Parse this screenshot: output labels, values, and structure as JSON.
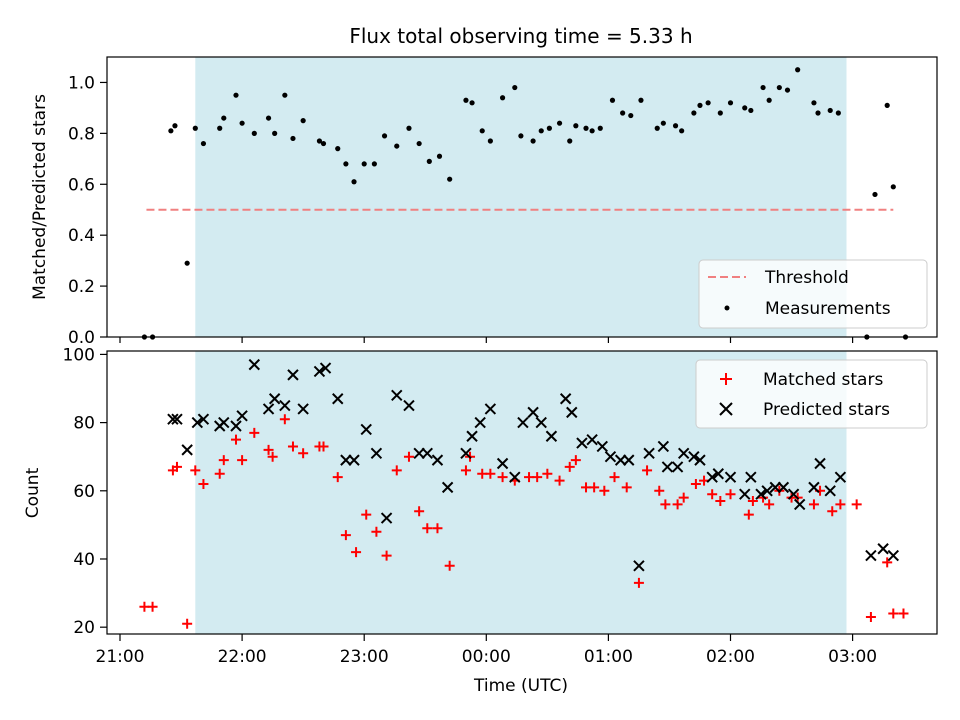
{
  "title": "Flux total observing time = 5.33 h",
  "xlabel": "Time (UTC)",
  "colors": {
    "shade": "#d3ebf1",
    "threshold": "#f08080",
    "matched": "#ff0000",
    "predicted": "#000000",
    "measurement": "#000000"
  },
  "chart_data": [
    {
      "type": "scatter",
      "ylabel": "Matched/Predicted stars",
      "xlim": [
        "20:55",
        "03:33"
      ],
      "ylim": [
        0,
        1.1
      ],
      "yticks": [
        "0.0",
        "0.2",
        "0.4",
        "0.6",
        "0.8",
        "1.0"
      ],
      "legend_position": "lower-right",
      "shaded_region": [
        "21:37",
        "02:57"
      ],
      "threshold": {
        "name": "Threshold",
        "value": 0.5,
        "x_range": [
          "21:13",
          "03:20"
        ]
      },
      "series": [
        {
          "name": "Measurements",
          "points": [
            [
              "21:12",
              0
            ],
            [
              "21:16",
              0
            ],
            [
              "21:25",
              0.81
            ],
            [
              "21:27",
              0.83
            ],
            [
              "21:33",
              0.29
            ],
            [
              "21:37",
              0.82
            ],
            [
              "21:41",
              0.76
            ],
            [
              "21:49",
              0.82
            ],
            [
              "21:51",
              0.86
            ],
            [
              "21:57",
              0.95
            ],
            [
              "22:00",
              0.84
            ],
            [
              "22:06",
              0.8
            ],
            [
              "22:13",
              0.86
            ],
            [
              "22:16",
              0.8
            ],
            [
              "22:21",
              0.95
            ],
            [
              "22:25",
              0.78
            ],
            [
              "22:30",
              0.85
            ],
            [
              "22:38",
              0.77
            ],
            [
              "22:40",
              0.76
            ],
            [
              "22:47",
              0.74
            ],
            [
              "22:51",
              0.68
            ],
            [
              "22:55",
              0.61
            ],
            [
              "23:00",
              0.68
            ],
            [
              "23:05",
              0.68
            ],
            [
              "23:10",
              0.79
            ],
            [
              "23:16",
              0.75
            ],
            [
              "23:22",
              0.82
            ],
            [
              "23:27",
              0.76
            ],
            [
              "23:32",
              0.69
            ],
            [
              "23:37",
              0.71
            ],
            [
              "23:42",
              0.62
            ],
            [
              "23:50",
              0.93
            ],
            [
              "23:53",
              0.92
            ],
            [
              "23:58",
              0.81
            ],
            [
              "00:02",
              0.77
            ],
            [
              "00:08",
              0.94
            ],
            [
              "00:14",
              0.98
            ],
            [
              "00:17",
              0.79
            ],
            [
              "00:23",
              0.77
            ],
            [
              "00:27",
              0.81
            ],
            [
              "00:31",
              0.82
            ],
            [
              "00:36",
              0.84
            ],
            [
              "00:41",
              0.77
            ],
            [
              "00:44",
              0.83
            ],
            [
              "00:49",
              0.82
            ],
            [
              "00:52",
              0.81
            ],
            [
              "00:56",
              0.82
            ],
            [
              "01:02",
              0.93
            ],
            [
              "01:07",
              0.88
            ],
            [
              "01:11",
              0.87
            ],
            [
              "01:16",
              0.93
            ],
            [
              "01:24",
              0.82
            ],
            [
              "01:27",
              0.84
            ],
            [
              "01:33",
              0.83
            ],
            [
              "01:36",
              0.81
            ],
            [
              "01:42",
              0.88
            ],
            [
              "01:45",
              0.91
            ],
            [
              "01:49",
              0.92
            ],
            [
              "01:55",
              0.88
            ],
            [
              "02:00",
              0.92
            ],
            [
              "02:07",
              0.9
            ],
            [
              "02:10",
              0.89
            ],
            [
              "02:16",
              0.98
            ],
            [
              "02:19",
              0.93
            ],
            [
              "02:24",
              0.98
            ],
            [
              "02:28",
              0.97
            ],
            [
              "02:33",
              1.05
            ],
            [
              "02:41",
              0.92
            ],
            [
              "02:43",
              0.88
            ],
            [
              "02:49",
              0.89
            ],
            [
              "02:53",
              0.88
            ],
            [
              "03:07",
              0
            ],
            [
              "03:11",
              0.56
            ],
            [
              "03:17",
              0.91
            ],
            [
              "03:20",
              0.59
            ],
            [
              "03:26",
              0
            ]
          ]
        }
      ]
    },
    {
      "type": "scatter",
      "ylabel": "Count",
      "xlim": [
        "20:55",
        "03:33"
      ],
      "ylim": [
        18,
        101
      ],
      "yticks": [
        "20",
        "40",
        "60",
        "80",
        "100"
      ],
      "xticks": [
        "21:00",
        "22:00",
        "23:00",
        "00:00",
        "01:00",
        "02:00",
        "03:00"
      ],
      "legend_position": "upper-right",
      "shaded_region": [
        "21:37",
        "02:57"
      ],
      "series": [
        {
          "name": "Matched stars",
          "marker": "+",
          "points": [
            [
              "21:12",
              26
            ],
            [
              "21:16",
              26
            ],
            [
              "21:26",
              66
            ],
            [
              "21:28",
              67
            ],
            [
              "21:33",
              21
            ],
            [
              "21:37",
              66
            ],
            [
              "21:41",
              62
            ],
            [
              "21:49",
              65
            ],
            [
              "21:51",
              69
            ],
            [
              "21:57",
              75
            ],
            [
              "22:00",
              69
            ],
            [
              "22:06",
              77
            ],
            [
              "22:13",
              72
            ],
            [
              "22:15",
              70
            ],
            [
              "22:21",
              81
            ],
            [
              "22:25",
              73
            ],
            [
              "22:30",
              71
            ],
            [
              "22:38",
              73
            ],
            [
              "22:40",
              73
            ],
            [
              "22:47",
              64
            ],
            [
              "22:51",
              47
            ],
            [
              "22:56",
              42
            ],
            [
              "23:01",
              53
            ],
            [
              "23:06",
              48
            ],
            [
              "23:11",
              41
            ],
            [
              "23:16",
              66
            ],
            [
              "23:22",
              70
            ],
            [
              "23:27",
              54
            ],
            [
              "23:31",
              49
            ],
            [
              "23:36",
              49
            ],
            [
              "23:42",
              38
            ],
            [
              "23:50",
              66
            ],
            [
              "23:52",
              70
            ],
            [
              "23:58",
              65
            ],
            [
              "00:02",
              65
            ],
            [
              "00:08",
              64
            ],
            [
              "00:14",
              63
            ],
            [
              "00:21",
              64
            ],
            [
              "00:25",
              64
            ],
            [
              "00:30",
              65
            ],
            [
              "00:36",
              63
            ],
            [
              "00:41",
              67
            ],
            [
              "00:44",
              69
            ],
            [
              "00:49",
              61
            ],
            [
              "00:53",
              61
            ],
            [
              "00:58",
              60
            ],
            [
              "01:03",
              64
            ],
            [
              "01:09",
              61
            ],
            [
              "01:15",
              33
            ],
            [
              "01:19",
              66
            ],
            [
              "01:25",
              60
            ],
            [
              "01:28",
              56
            ],
            [
              "01:34",
              56
            ],
            [
              "01:37",
              58
            ],
            [
              "01:43",
              62
            ],
            [
              "01:47",
              63
            ],
            [
              "01:51",
              59
            ],
            [
              "01:55",
              57
            ],
            [
              "02:00",
              59
            ],
            [
              "02:09",
              53
            ],
            [
              "02:11",
              57
            ],
            [
              "02:16",
              58
            ],
            [
              "02:19",
              56
            ],
            [
              "02:24",
              60
            ],
            [
              "02:30",
              58
            ],
            [
              "02:33",
              58
            ],
            [
              "02:41",
              56
            ],
            [
              "02:44",
              60
            ],
            [
              "02:50",
              54
            ],
            [
              "02:54",
              56
            ],
            [
              "03:02",
              56
            ],
            [
              "03:09",
              23
            ],
            [
              "03:17",
              39
            ],
            [
              "03:20",
              24
            ],
            [
              "03:25",
              24
            ]
          ]
        },
        {
          "name": "Predicted stars",
          "marker": "x",
          "points": [
            [
              "21:26",
              81
            ],
            [
              "21:28",
              81
            ],
            [
              "21:33",
              72
            ],
            [
              "21:38",
              80
            ],
            [
              "21:41",
              81
            ],
            [
              "21:49",
              79
            ],
            [
              "21:51",
              80
            ],
            [
              "21:57",
              79
            ],
            [
              "22:00",
              82
            ],
            [
              "22:06",
              97
            ],
            [
              "22:13",
              84
            ],
            [
              "22:16",
              87
            ],
            [
              "22:21",
              85
            ],
            [
              "22:25",
              94
            ],
            [
              "22:30",
              84
            ],
            [
              "22:38",
              95
            ],
            [
              "22:41",
              96
            ],
            [
              "22:47",
              87
            ],
            [
              "22:51",
              69
            ],
            [
              "22:55",
              69
            ],
            [
              "23:01",
              78
            ],
            [
              "23:06",
              71
            ],
            [
              "23:11",
              52
            ],
            [
              "23:16",
              88
            ],
            [
              "23:22",
              85
            ],
            [
              "23:27",
              71
            ],
            [
              "23:31",
              71
            ],
            [
              "23:36",
              69
            ],
            [
              "23:41",
              61
            ],
            [
              "23:50",
              71
            ],
            [
              "23:53",
              76
            ],
            [
              "23:57",
              80
            ],
            [
              "00:02",
              84
            ],
            [
              "00:08",
              68
            ],
            [
              "00:14",
              64
            ],
            [
              "00:18",
              80
            ],
            [
              "00:23",
              83
            ],
            [
              "00:27",
              80
            ],
            [
              "00:32",
              76
            ],
            [
              "00:39",
              87
            ],
            [
              "00:42",
              83
            ],
            [
              "00:47",
              74
            ],
            [
              "00:52",
              75
            ],
            [
              "00:57",
              73
            ],
            [
              "01:01",
              70
            ],
            [
              "01:06",
              69
            ],
            [
              "01:10",
              69
            ],
            [
              "01:15",
              38
            ],
            [
              "01:20",
              71
            ],
            [
              "01:27",
              73
            ],
            [
              "01:29",
              67
            ],
            [
              "01:34",
              67
            ],
            [
              "01:37",
              71
            ],
            [
              "01:42",
              70
            ],
            [
              "01:45",
              69
            ],
            [
              "01:51",
              64
            ],
            [
              "01:54",
              65
            ],
            [
              "02:00",
              64
            ],
            [
              "02:07",
              59
            ],
            [
              "02:10",
              64
            ],
            [
              "02:15",
              59
            ],
            [
              "02:18",
              60
            ],
            [
              "02:22",
              61
            ],
            [
              "02:26",
              61
            ],
            [
              "02:31",
              59
            ],
            [
              "02:34",
              56
            ],
            [
              "02:41",
              61
            ],
            [
              "02:44",
              68
            ],
            [
              "02:49",
              60
            ],
            [
              "02:54",
              64
            ],
            [
              "03:09",
              41
            ],
            [
              "03:15",
              43
            ],
            [
              "03:20",
              41
            ]
          ]
        }
      ]
    }
  ]
}
